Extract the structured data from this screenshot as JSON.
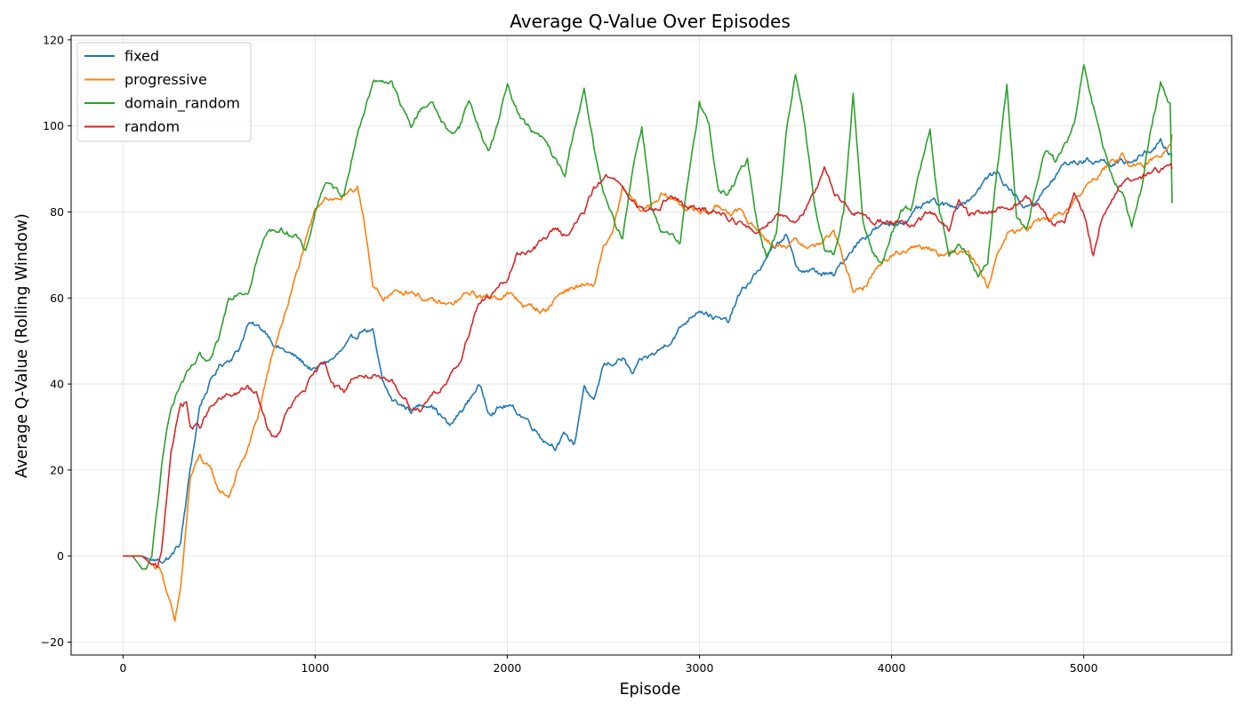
{
  "chart_data": {
    "type": "line",
    "title": "Average Q-Value Over Episodes",
    "xlabel": "Episode",
    "ylabel": "Average Q-Value (Rolling Window)",
    "xlim": [
      -270,
      5770
    ],
    "ylim": [
      -23,
      121
    ],
    "xticks": [
      0,
      1000,
      2000,
      3000,
      4000,
      5000
    ],
    "yticks": [
      -20,
      0,
      20,
      40,
      60,
      80,
      100,
      120
    ],
    "xtick_labels": [
      "0",
      "1000",
      "2000",
      "3000",
      "4000",
      "5000"
    ],
    "ytick_labels": [
      "−20",
      "0",
      "20",
      "40",
      "60",
      "80",
      "100",
      "120"
    ],
    "grid": true,
    "legend_position": "top-left",
    "series": [
      {
        "name": "fixed",
        "color": "#1f77b4",
        "x": [
          0,
          100,
          150,
          200,
          250,
          300,
          350,
          400,
          450,
          500,
          600,
          650,
          700,
          750,
          800,
          900,
          1000,
          1050,
          1100,
          1200,
          1250,
          1300,
          1350,
          1400,
          1500,
          1600,
          1700,
          1800,
          1850,
          1900,
          2000,
          2100,
          2200,
          2250,
          2300,
          2350,
          2400,
          2450,
          2500,
          2600,
          2650,
          2700,
          2800,
          2900,
          3000,
          3100,
          3150,
          3200,
          3300,
          3400,
          3450,
          3500,
          3600,
          3700,
          3800,
          3900,
          4000,
          4100,
          4200,
          4300,
          4400,
          4500,
          4550,
          4600,
          4700,
          4800,
          4900,
          5000,
          5100,
          5200,
          5300,
          5400,
          5460
        ],
        "values": [
          0,
          0,
          -1,
          -1,
          0,
          3,
          20,
          35,
          40,
          44,
          48,
          54,
          53,
          52,
          49,
          46,
          43,
          45,
          46,
          50,
          53,
          52,
          40,
          36,
          34,
          36,
          30,
          36,
          40,
          34,
          35,
          32,
          27,
          26,
          28,
          26,
          40,
          35,
          44,
          46,
          42,
          45,
          48,
          53,
          58,
          55,
          54,
          60,
          66,
          72,
          75,
          67,
          66,
          65,
          72,
          76,
          77,
          79,
          82,
          81,
          83,
          88,
          89,
          86,
          81,
          85,
          91,
          92,
          92,
          91,
          93,
          96,
          93
        ]
      },
      {
        "name": "progressive",
        "color": "#ff7f0e",
        "x": [
          0,
          100,
          150,
          200,
          250,
          270,
          300,
          350,
          400,
          450,
          500,
          550,
          600,
          650,
          700,
          750,
          800,
          900,
          1000,
          1050,
          1100,
          1200,
          1220,
          1250,
          1300,
          1350,
          1400,
          1500,
          1600,
          1700,
          1800,
          1900,
          2000,
          2100,
          2200,
          2250,
          2300,
          2400,
          2450,
          2500,
          2550,
          2600,
          2700,
          2800,
          2900,
          3000,
          3100,
          3200,
          3300,
          3400,
          3500,
          3600,
          3700,
          3800,
          3850,
          3900,
          4000,
          4100,
          4200,
          4300,
          4400,
          4500,
          4550,
          4600,
          4700,
          4800,
          4900,
          5000,
          5100,
          5200,
          5300,
          5400,
          5460
        ],
        "values": [
          0,
          0,
          -2,
          -3,
          -12,
          -16,
          -8,
          18,
          23,
          20,
          15,
          14,
          20,
          25,
          32,
          42,
          50,
          65,
          80,
          84,
          83,
          84,
          86,
          80,
          62,
          60,
          61,
          62,
          59,
          58,
          61,
          60,
          61,
          58,
          57,
          60,
          62,
          63,
          62,
          72,
          75,
          85,
          80,
          84,
          82,
          80,
          81,
          80,
          76,
          72,
          73,
          72,
          75,
          62,
          61,
          66,
          70,
          72,
          72,
          70,
          72,
          63,
          70,
          75,
          76,
          78,
          80,
          85,
          90,
          93,
          90,
          93,
          98
        ]
      },
      {
        "name": "domain_random",
        "color": "#2ca02c",
        "x": [
          0,
          50,
          100,
          120,
          150,
          200,
          250,
          300,
          350,
          400,
          450,
          500,
          550,
          600,
          650,
          700,
          750,
          800,
          900,
          950,
          1000,
          1050,
          1100,
          1150,
          1200,
          1250,
          1300,
          1350,
          1400,
          1450,
          1500,
          1550,
          1600,
          1650,
          1700,
          1750,
          1800,
          1850,
          1900,
          1950,
          2000,
          2050,
          2100,
          2150,
          2200,
          2250,
          2300,
          2350,
          2400,
          2450,
          2500,
          2550,
          2600,
          2650,
          2700,
          2750,
          2800,
          2850,
          2900,
          2950,
          3000,
          3050,
          3100,
          3150,
          3200,
          3250,
          3300,
          3350,
          3400,
          3450,
          3500,
          3550,
          3600,
          3650,
          3700,
          3750,
          3800,
          3850,
          3900,
          3950,
          4000,
          4050,
          4100,
          4150,
          4200,
          4250,
          4300,
          4350,
          4400,
          4450,
          4500,
          4550,
          4600,
          4650,
          4700,
          4750,
          4800,
          4850,
          4900,
          4950,
          5000,
          5050,
          5100,
          5150,
          5200,
          5250,
          5300,
          5350,
          5400,
          5450,
          5460
        ],
        "values": [
          0,
          0,
          -3,
          -3,
          0,
          20,
          35,
          40,
          43,
          46,
          44,
          50,
          60,
          62,
          62,
          70,
          75,
          76,
          75,
          70,
          80,
          87,
          85,
          84,
          95,
          103,
          110,
          111,
          110,
          104,
          100,
          104,
          106,
          102,
          98,
          100,
          106,
          100,
          94,
          100,
          110,
          104,
          100,
          98,
          96,
          92,
          88,
          100,
          108,
          95,
          84,
          78,
          74,
          90,
          100,
          82,
          75,
          74,
          72,
          90,
          106,
          100,
          85,
          84,
          88,
          92,
          78,
          70,
          75,
          98,
          112,
          100,
          82,
          72,
          70,
          80,
          108,
          78,
          70,
          68,
          75,
          80,
          80,
          90,
          100,
          80,
          70,
          72,
          70,
          65,
          68,
          90,
          110,
          80,
          75,
          85,
          94,
          92,
          95,
          100,
          113,
          104,
          95,
          88,
          84,
          76,
          85,
          100,
          110,
          105,
          82
        ]
      },
      {
        "name": "random",
        "color": "#d62728",
        "x": [
          0,
          100,
          150,
          180,
          200,
          250,
          300,
          330,
          350,
          400,
          450,
          500,
          550,
          600,
          650,
          700,
          750,
          800,
          850,
          900,
          1000,
          1050,
          1100,
          1150,
          1200,
          1250,
          1300,
          1350,
          1400,
          1450,
          1500,
          1550,
          1600,
          1650,
          1700,
          1750,
          1800,
          1850,
          1900,
          1950,
          2000,
          2050,
          2100,
          2150,
          2200,
          2250,
          2300,
          2350,
          2400,
          2450,
          2500,
          2550,
          2600,
          2650,
          2700,
          2800,
          2850,
          2900,
          3000,
          3100,
          3200,
          3250,
          3300,
          3400,
          3500,
          3600,
          3650,
          3700,
          3800,
          3900,
          4000,
          4100,
          4200,
          4300,
          4350,
          4400,
          4500,
          4600,
          4700,
          4800,
          4850,
          4900,
          4950,
          5000,
          5050,
          5100,
          5200,
          5300,
          5400,
          5460
        ],
        "values": [
          0,
          0,
          -2,
          -3,
          0,
          25,
          35,
          36,
          30,
          30,
          34,
          36,
          37,
          38,
          39,
          37,
          30,
          27,
          33,
          36,
          42,
          45,
          40,
          38,
          42,
          42,
          42,
          40,
          40,
          38,
          35,
          34,
          38,
          39,
          41,
          44,
          52,
          59,
          60,
          62,
          64,
          70,
          71,
          72,
          74,
          76,
          75,
          77,
          80,
          85,
          88,
          89,
          85,
          82,
          80,
          82,
          84,
          82,
          80,
          80,
          78,
          76,
          75,
          80,
          78,
          84,
          89,
          85,
          80,
          78,
          78,
          76,
          80,
          76,
          82,
          79,
          80,
          81,
          83,
          80,
          76,
          78,
          84,
          80,
          70,
          80,
          86,
          88,
          90,
          90
        ]
      }
    ]
  }
}
